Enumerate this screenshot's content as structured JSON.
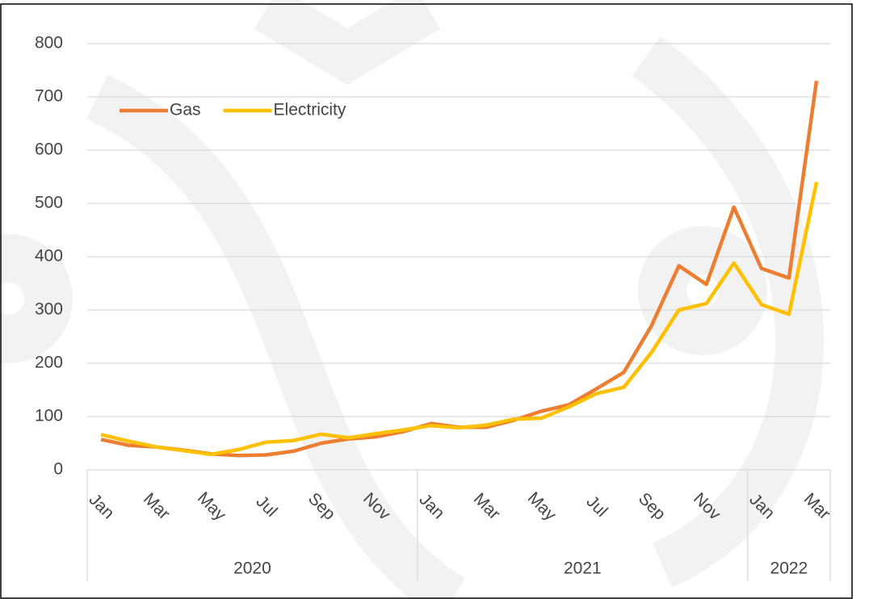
{
  "chart_data": {
    "type": "line",
    "categories": [
      "Jan",
      null,
      "Mar",
      null,
      "May",
      null,
      "Jul",
      null,
      "Sep",
      null,
      "Nov",
      null,
      "Jan",
      null,
      "Mar",
      null,
      "May",
      null,
      "Jul",
      null,
      "Sep",
      null,
      "Nov",
      null,
      "Jan",
      null,
      "Mar"
    ],
    "x_groups": [
      {
        "label": "2020",
        "span": 12
      },
      {
        "label": "2021",
        "span": 12
      },
      {
        "label": "2022",
        "span": 3
      }
    ],
    "series": [
      {
        "name": "Gas",
        "color": "#ed7d31",
        "values": [
          57,
          46,
          43,
          37,
          30,
          27,
          28,
          35,
          50,
          58,
          62,
          72,
          87,
          80,
          80,
          93,
          110,
          122,
          152,
          183,
          270,
          383,
          348,
          493,
          378,
          360,
          730
        ]
      },
      {
        "name": "Electricity",
        "color": "#ffc000",
        "values": [
          66,
          54,
          43,
          36,
          29,
          38,
          52,
          55,
          67,
          60,
          68,
          75,
          83,
          79,
          84,
          95,
          97,
          118,
          143,
          155,
          220,
          300,
          312,
          388,
          310,
          292,
          540
        ]
      }
    ],
    "ylim": [
      0,
      800
    ],
    "yticks": [
      0,
      100,
      200,
      300,
      400,
      500,
      600,
      700,
      800
    ],
    "grid": true,
    "legend": "upper left"
  }
}
